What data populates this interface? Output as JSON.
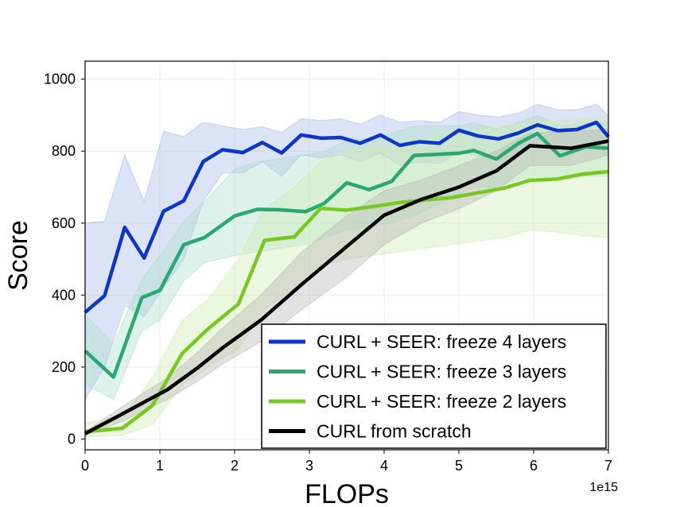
{
  "chart_data": {
    "type": "line",
    "xlabel": "FLOPs",
    "ylabel": "Score",
    "x_offset_label": "1e15",
    "xlim": [
      0,
      7
    ],
    "ylim": [
      -30,
      1050
    ],
    "xticks": [
      0,
      1,
      2,
      3,
      4,
      5,
      6,
      7
    ],
    "yticks": [
      0,
      200,
      400,
      600,
      800,
      1000
    ],
    "grid": true,
    "legend_position": "lower-right",
    "series": [
      {
        "name": "CURL + SEER: freeze 4 layers",
        "color": "#0b36c8",
        "band_color": "#a9b9ea",
        "x": [
          0,
          0.26,
          0.53,
          0.79,
          1.05,
          1.32,
          1.58,
          1.84,
          2.11,
          2.37,
          2.63,
          2.89,
          3.16,
          3.42,
          3.68,
          3.95,
          4.21,
          4.47,
          4.74,
          5.0,
          5.26,
          5.53,
          5.79,
          6.05,
          6.32,
          6.58,
          6.84,
          7.0
        ],
        "y": [
          352,
          398,
          588,
          503,
          633,
          662,
          771,
          804,
          796,
          824,
          795,
          845,
          836,
          838,
          822,
          845,
          816,
          826,
          822,
          858,
          842,
          834,
          850,
          873,
          857,
          860,
          880,
          840
        ],
        "upper": [
          600,
          605,
          790,
          660,
          855,
          840,
          880,
          870,
          860,
          868,
          852,
          890,
          885,
          890,
          875,
          900,
          880,
          885,
          880,
          910,
          900,
          895,
          905,
          930,
          915,
          915,
          930,
          900
        ],
        "lower": [
          110,
          200,
          370,
          340,
          420,
          500,
          660,
          740,
          740,
          770,
          730,
          790,
          780,
          790,
          770,
          795,
          760,
          770,
          765,
          800,
          785,
          775,
          795,
          815,
          800,
          805,
          830,
          780
        ]
      },
      {
        "name": "CURL + SEER: freeze 3 layers",
        "color": "#2aa772",
        "band_color": "#a9dfcb",
        "x": [
          0,
          0.38,
          0.76,
          1.0,
          1.32,
          1.6,
          2.0,
          2.3,
          2.6,
          2.95,
          3.2,
          3.5,
          3.8,
          4.1,
          4.4,
          4.7,
          5.0,
          5.2,
          5.5,
          5.8,
          6.05,
          6.35,
          6.7,
          7.0
        ],
        "y": [
          245,
          172,
          393,
          413,
          540,
          560,
          620,
          638,
          637,
          632,
          655,
          712,
          693,
          716,
          788,
          791,
          794,
          802,
          778,
          822,
          849,
          787,
          812,
          808
        ],
        "upper": [
          345,
          265,
          445,
          510,
          605,
          660,
          750,
          770,
          780,
          790,
          800,
          830,
          835,
          850,
          870,
          870,
          870,
          880,
          860,
          880,
          900,
          870,
          880,
          880
        ],
        "lower": [
          150,
          110,
          300,
          330,
          440,
          490,
          510,
          520,
          530,
          540,
          560,
          580,
          590,
          600,
          620,
          650,
          680,
          700,
          700,
          720,
          730,
          720,
          730,
          730
        ]
      },
      {
        "name": "CURL + SEER: freeze 2 layers",
        "color": "#78c823",
        "band_color": "#d0eaaf",
        "x": [
          0,
          0.5,
          0.9,
          1.3,
          1.65,
          2.05,
          2.4,
          2.8,
          3.15,
          3.5,
          3.85,
          4.2,
          4.55,
          4.9,
          5.25,
          5.6,
          5.95,
          6.3,
          6.65,
          7.0
        ],
        "y": [
          20,
          30,
          93,
          238,
          307,
          375,
          552,
          562,
          641,
          636,
          646,
          657,
          664,
          671,
          684,
          697,
          719,
          722,
          736,
          743
        ],
        "upper": [
          45,
          60,
          170,
          330,
          390,
          500,
          640,
          700,
          770,
          800,
          810,
          820,
          840,
          850,
          860,
          870,
          880,
          885,
          890,
          900
        ],
        "lower": [
          5,
          10,
          40,
          150,
          200,
          250,
          360,
          420,
          480,
          500,
          510,
          520,
          530,
          540,
          550,
          560,
          580,
          575,
          565,
          560
        ]
      },
      {
        "name": "CURL from scratch",
        "color": "#000000",
        "band_color": "#b7b7b7",
        "x": [
          0,
          0.5,
          1.1,
          1.5,
          1.85,
          2.35,
          2.9,
          3.5,
          4.0,
          4.5,
          5.0,
          5.5,
          5.95,
          6.5,
          7.0
        ],
        "y": [
          15,
          70,
          137,
          197,
          255,
          330,
          430,
          535,
          622,
          666,
          700,
          745,
          815,
          808,
          828
        ],
        "upper": [
          20,
          90,
          170,
          240,
          310,
          400,
          520,
          620,
          690,
          720,
          760,
          800,
          850,
          855,
          860
        ],
        "lower": [
          10,
          50,
          110,
          160,
          210,
          270,
          360,
          450,
          540,
          600,
          640,
          690,
          760,
          760,
          790
        ]
      }
    ]
  }
}
